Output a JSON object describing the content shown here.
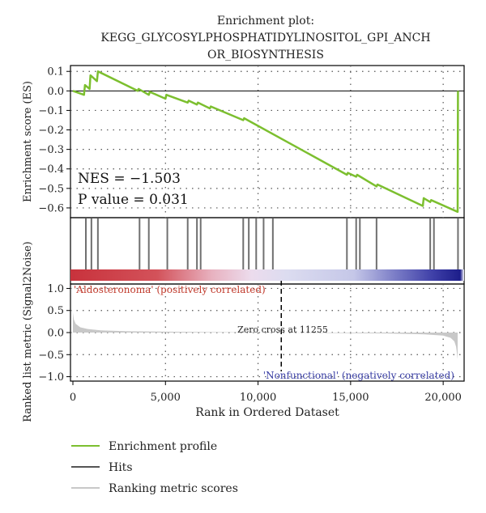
{
  "title_line1": "Enrichment plot:",
  "title_line2": "KEGG_GLYCOSYLPHOSPHATIDYLINOSITOL_GPI_ANCH",
  "title_line3": "OR_BIOSYNTHESIS",
  "stats": {
    "nes": "NES = −1.503",
    "pvalue": "P value = 0.031"
  },
  "colors": {
    "enrichment": "#7cbf2f",
    "hits": "#707070",
    "ranking": "#c8c8c8",
    "positive_label": "#c0392b",
    "negative_label": "#3a3fa5"
  },
  "chart_data": [
    {
      "type": "line",
      "name": "enrichment-score",
      "ylabel": "Enrichment score (ES)",
      "ylim": [
        -0.65,
        0.13
      ],
      "xlim": [
        0,
        21000
      ],
      "yticks": [
        "0.1",
        "0.0",
        "−0.1",
        "−0.2",
        "−0.3",
        "−0.4",
        "−0.5",
        "−0.6"
      ],
      "ytick_values": [
        0.1,
        0.0,
        -0.1,
        -0.2,
        -0.3,
        -0.4,
        -0.5,
        -0.6
      ],
      "grid": true,
      "x": [
        0,
        600,
        650,
        900,
        950,
        1300,
        1350,
        3500,
        3550,
        4100,
        4150,
        5000,
        5050,
        6200,
        6250,
        6700,
        6750,
        7400,
        7450,
        9200,
        9250,
        14800,
        14850,
        15300,
        15350,
        16400,
        16450,
        18900,
        18950,
        19300,
        19350,
        20780,
        20800
      ],
      "y": [
        0.0,
        -0.02,
        0.03,
        0.01,
        0.08,
        0.05,
        0.1,
        0.0,
        0.01,
        -0.02,
        -0.005,
        -0.04,
        -0.02,
        -0.06,
        -0.05,
        -0.07,
        -0.06,
        -0.09,
        -0.08,
        -0.15,
        -0.14,
        -0.43,
        -0.42,
        -0.44,
        -0.43,
        -0.49,
        -0.48,
        -0.59,
        -0.55,
        -0.57,
        -0.56,
        -0.62,
        0.0
      ]
    },
    {
      "type": "hits",
      "name": "hit-positions",
      "positions": [
        700,
        1000,
        1350,
        3600,
        4100,
        5100,
        6200,
        6700,
        6900,
        9200,
        9500,
        9900,
        10300,
        10800,
        14800,
        15300,
        15500,
        16400,
        19300,
        19500,
        20800
      ]
    },
    {
      "type": "area",
      "name": "ranked-list-metric",
      "ylabel": "Ranked list metric (Signal2Noise)",
      "xlabel": "Rank in Ordered Dataset",
      "ylim": [
        -1.1,
        1.1
      ],
      "xlim": [
        0,
        21000
      ],
      "yticks": [
        "1.0",
        "0.5",
        "0.0",
        "−0.5",
        "−1.0"
      ],
      "ytick_values": [
        1.0,
        0.5,
        0.0,
        -0.5,
        -1.0
      ],
      "xticks": [
        "0",
        "5,000",
        "10,000",
        "15,000",
        "20,000"
      ],
      "xtick_values": [
        0,
        5000,
        10000,
        15000,
        20000
      ],
      "grid": true,
      "x": [
        0,
        50,
        150,
        400,
        800,
        1500,
        3000,
        5000,
        8000,
        11255,
        14000,
        17000,
        19000,
        20000,
        20400,
        20600,
        20700,
        20780
      ],
      "y": [
        0.45,
        0.3,
        0.2,
        0.12,
        0.08,
        0.05,
        0.03,
        0.02,
        0.01,
        0.0,
        -0.01,
        -0.02,
        -0.04,
        -0.07,
        -0.12,
        -0.2,
        -0.32,
        -0.6
      ],
      "zero_cross": "Zero cross at 11255",
      "zero_cross_x": 11255,
      "positive_label": "'Aldosteronoma' (positively correlated)",
      "negative_label": "'Nonfunctional' (negatively correlated)"
    }
  ],
  "legend": [
    {
      "label": "Enrichment profile",
      "color": "#7cbf2f"
    },
    {
      "label": "Hits",
      "color": "#555555"
    },
    {
      "label": "Ranking metric scores",
      "color": "#c8c8c8"
    }
  ]
}
